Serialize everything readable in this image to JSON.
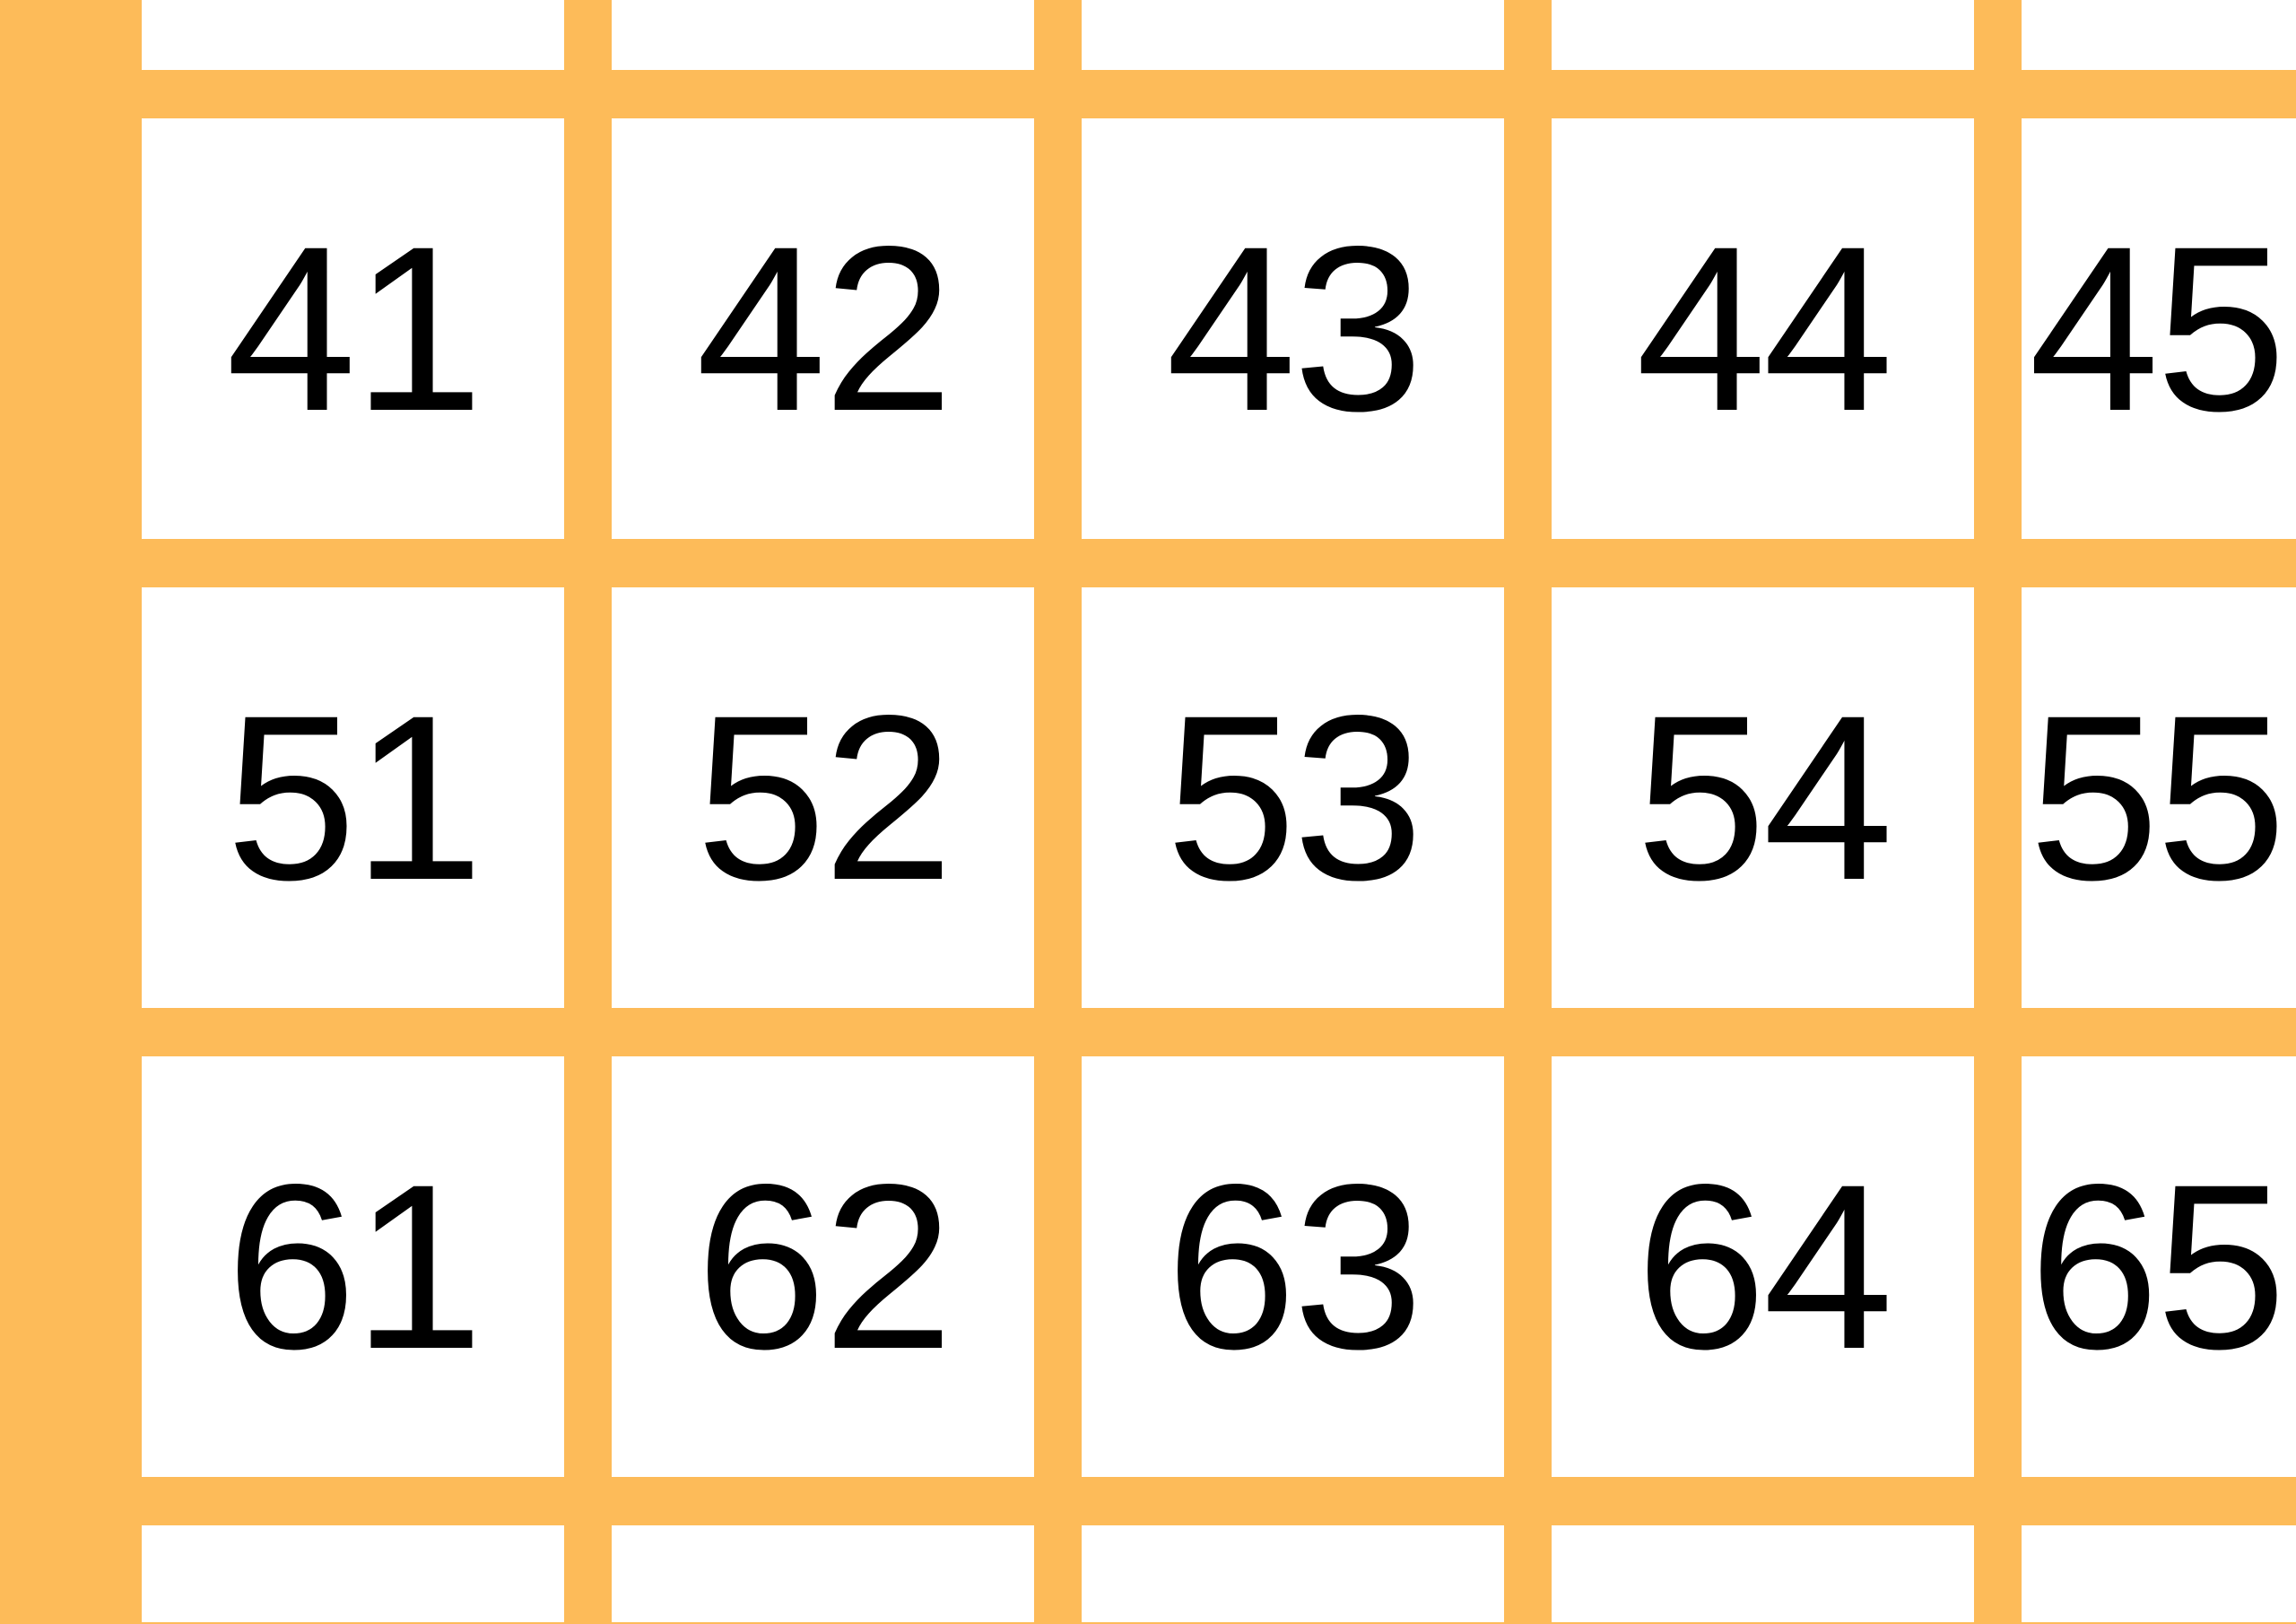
{
  "colors": {
    "grid": "#FDBB59",
    "cell": "#FFFFFF",
    "text": "#000000"
  },
  "grid": {
    "rows": [
      [
        "",
        "",
        "",
        "",
        ""
      ],
      [
        "41",
        "42",
        "43",
        "44",
        "45"
      ],
      [
        "51",
        "52",
        "53",
        "54",
        "55"
      ],
      [
        "61",
        "62",
        "63",
        "64",
        "65"
      ],
      [
        "",
        "",
        "",
        "",
        ""
      ]
    ]
  }
}
